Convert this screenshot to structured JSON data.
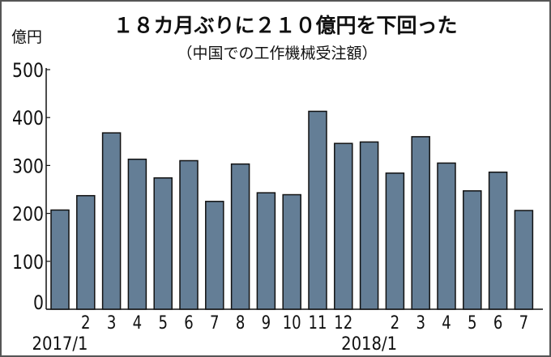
{
  "chart_data": {
    "type": "bar",
    "title": "１８カ月ぶりに２１０億円を下回った",
    "subtitle": "（中国での工作機械受注額）",
    "ylabel": "億円",
    "xlabel": "",
    "ylim": [
      0,
      500
    ],
    "yticks": [
      "0",
      "100",
      "200",
      "300",
      "400",
      "500"
    ],
    "categories": [
      "2017/1",
      "2",
      "3",
      "4",
      "5",
      "6",
      "7",
      "8",
      "9",
      "10",
      "11",
      "12",
      "2018/1",
      "2",
      "3",
      "4",
      "5",
      "6",
      "7"
    ],
    "values": [
      207,
      237,
      368,
      313,
      274,
      310,
      225,
      303,
      243,
      239,
      413,
      346,
      349,
      284,
      360,
      305,
      247,
      286,
      206
    ],
    "bar_color": "#647e96",
    "grid": false
  }
}
